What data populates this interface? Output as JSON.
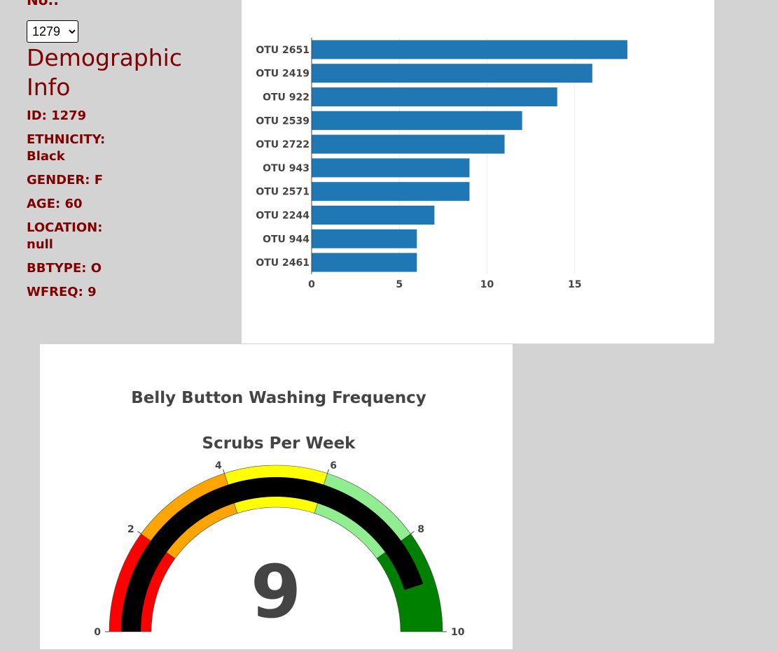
{
  "selector": {
    "label": "No.:",
    "selected": "1279",
    "options": [
      "1279"
    ]
  },
  "demographics": {
    "title": "Demographic Info",
    "rows": [
      "ID: 1279",
      "ETHNICITY:\nBlack",
      "GENDER: F",
      "AGE: 60",
      "LOCATION:\nnull",
      "BBTYPE: O",
      "WFREQ: 9"
    ]
  },
  "colors": {
    "label": "#800000",
    "background": "#d3d3d3",
    "bar": "#1f77b4",
    "needle": "#000000"
  },
  "chart_data": [
    {
      "type": "bar",
      "orientation": "horizontal",
      "categories": [
        "OTU 2651",
        "OTU 2419",
        "OTU 922",
        "OTU 2539",
        "OTU 2722",
        "OTU 943",
        "OTU 2571",
        "OTU 2244",
        "OTU 944",
        "OTU 2461"
      ],
      "values": [
        18,
        16,
        14,
        12,
        11,
        9,
        9,
        7,
        6,
        6
      ],
      "xlim": [
        0,
        18
      ],
      "xticks": [
        0,
        5,
        10,
        15
      ],
      "grid": true,
      "color": "#1f77b4"
    },
    {
      "type": "gauge",
      "title": "Belly Button Washing Frequency",
      "subtitle": "Scrubs Per Week",
      "value": 9,
      "range": [
        0,
        10
      ],
      "ticks": [
        0,
        2,
        4,
        6,
        8,
        10
      ],
      "steps": [
        {
          "range": [
            0,
            2
          ],
          "color": "#ff0000"
        },
        {
          "range": [
            2,
            4
          ],
          "color": "#ffa500"
        },
        {
          "range": [
            4,
            6
          ],
          "color": "#ffff00"
        },
        {
          "range": [
            6,
            8
          ],
          "color": "#90ee90"
        },
        {
          "range": [
            8,
            10
          ],
          "color": "#008000"
        }
      ],
      "bar_color": "#000000"
    }
  ]
}
